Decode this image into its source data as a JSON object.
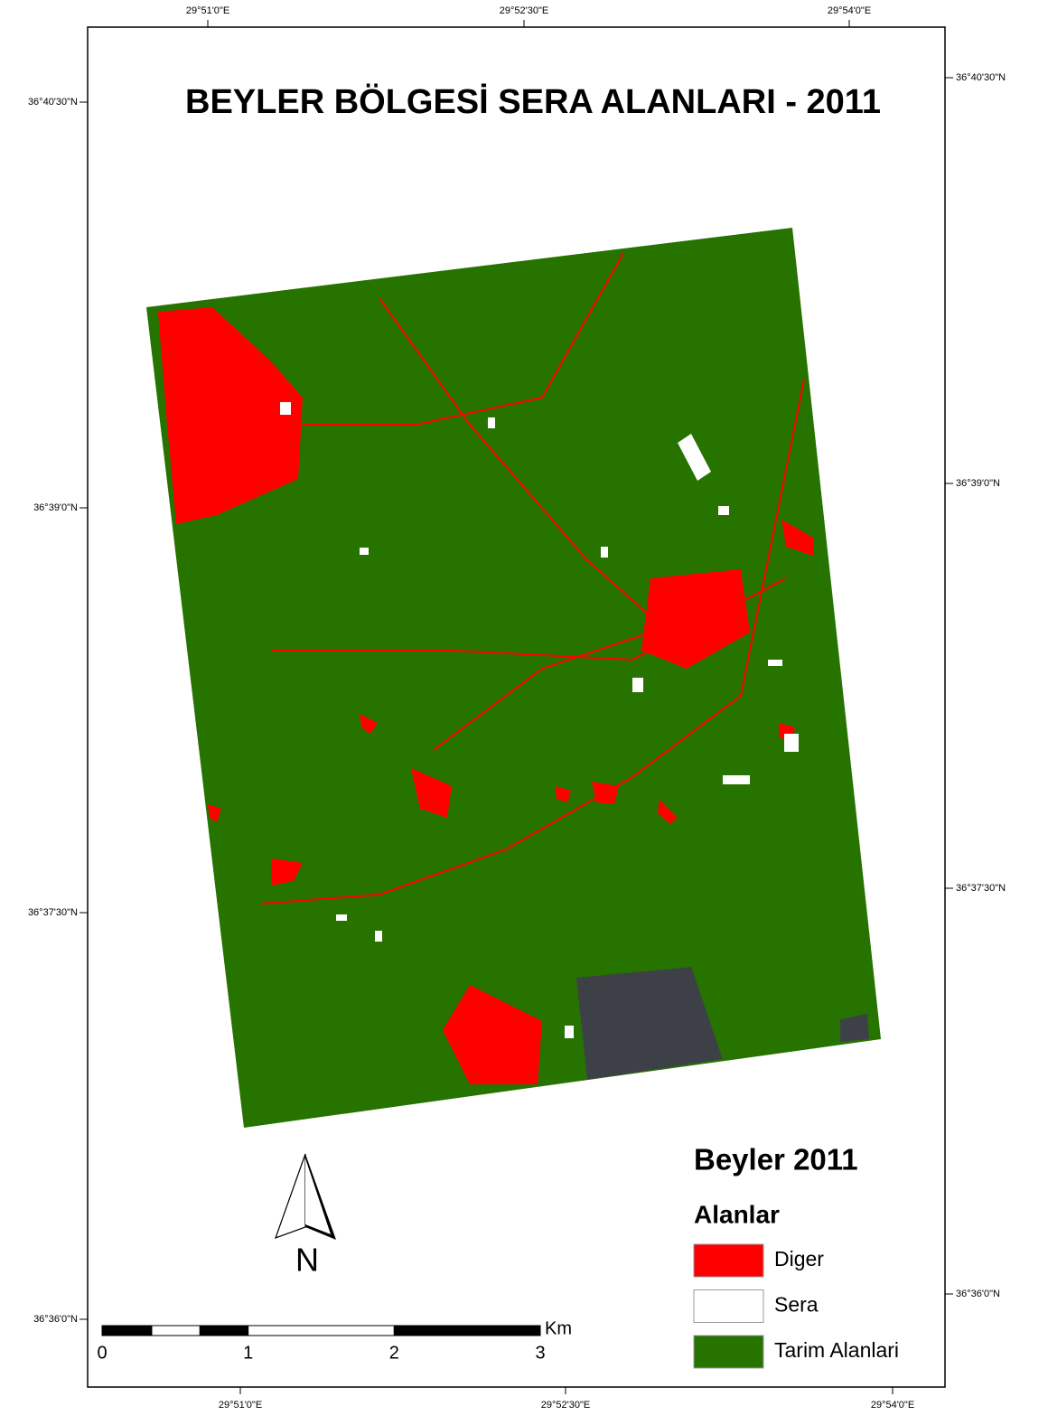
{
  "title": "BEYLER BÖLGESİ SERA ALANLARI - 2011",
  "graticule": {
    "top": [
      "29°51'0\"E",
      "29°52'30\"E",
      "29°54'0\"E"
    ],
    "bottom": [
      "29°51'0\"E",
      "29°52'30\"E",
      "29°54'0\"E"
    ],
    "left": [
      "36°40'30\"N",
      "36°39'0\"N",
      "36°37'30\"N",
      "36°36'0\"N"
    ],
    "right": [
      "36°40'30\"N",
      "36°39'0\"N",
      "36°37'30\"N",
      "36°36'0\"N"
    ]
  },
  "north_arrow": "N",
  "scale_bar": {
    "ticks": [
      0,
      1,
      2,
      3
    ],
    "unit": "Km"
  },
  "legend": {
    "title": "Beyler 2011",
    "subtitle": "Alanlar",
    "items": [
      {
        "label": "Diger",
        "color": "#ff0000"
      },
      {
        "label": "Sera",
        "color": "#ffffff"
      },
      {
        "label": "Tarim Alanlari",
        "color": "#267300"
      }
    ]
  }
}
